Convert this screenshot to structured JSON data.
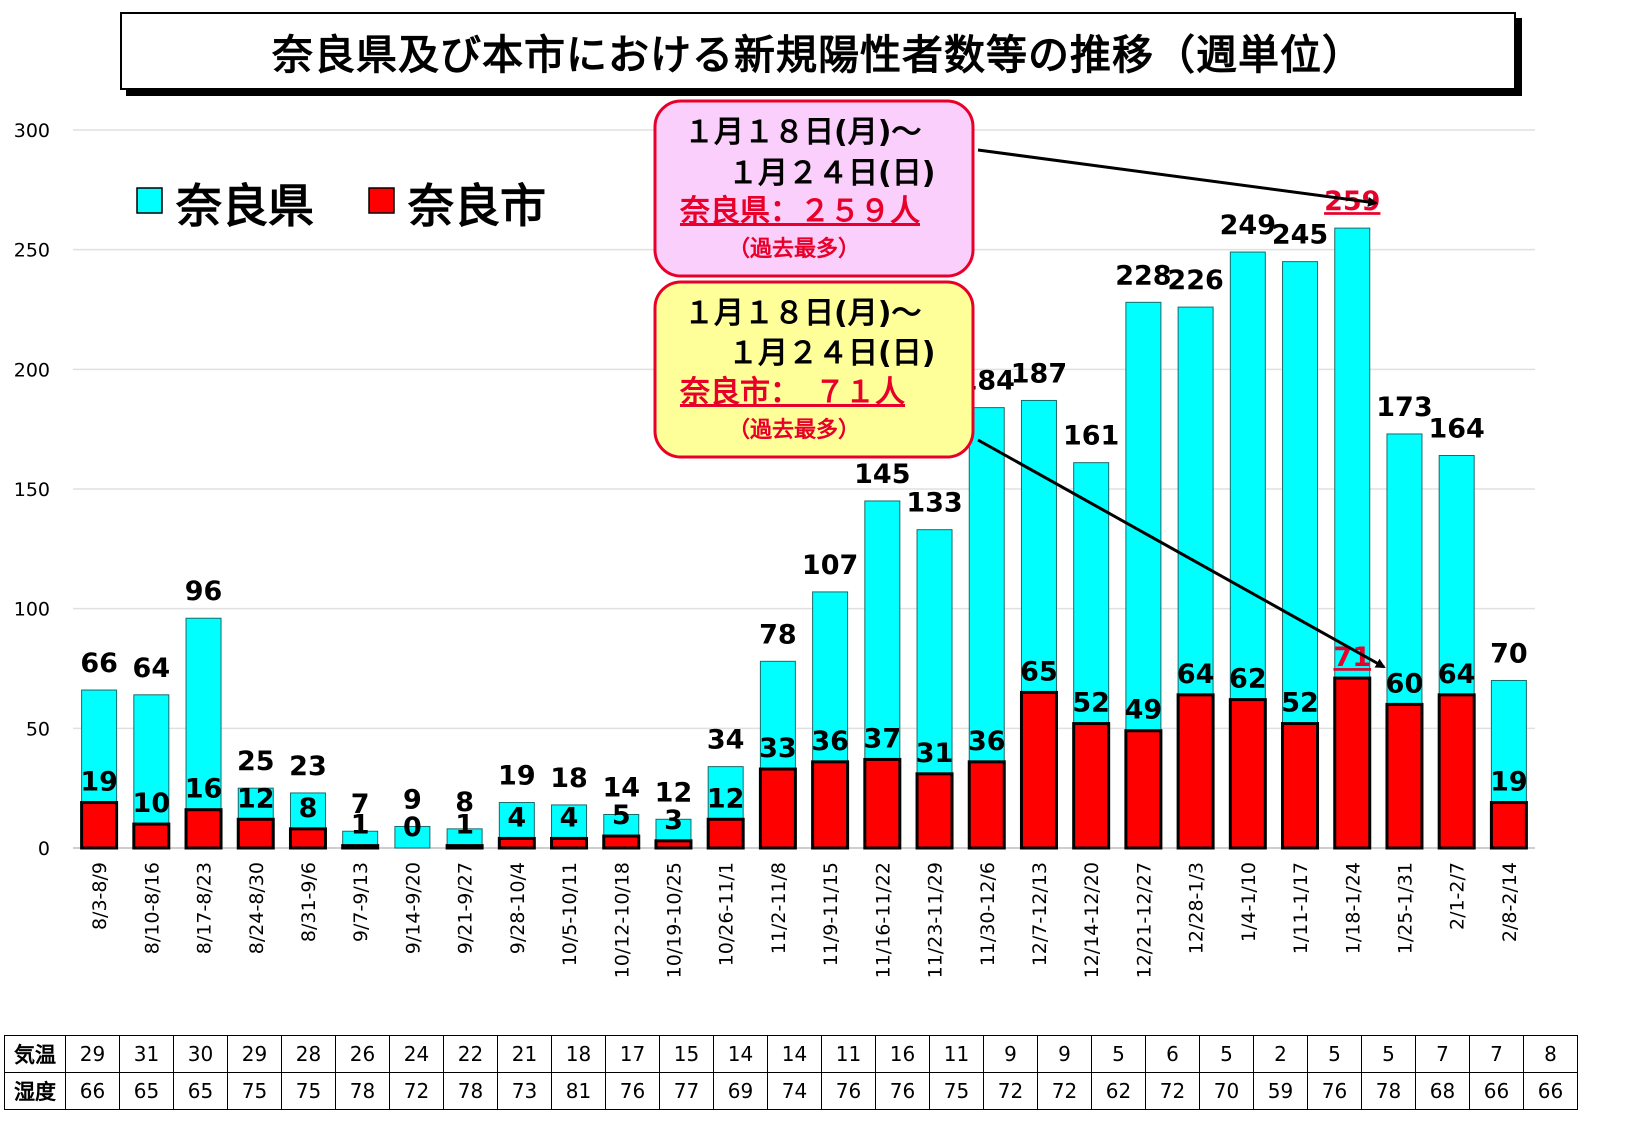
{
  "page_title": "奈良県及び本市における新規陽性者数等の推移（週単位）",
  "colors": {
    "prefecture": "#00FFFF",
    "city": "#FF0000",
    "accent": "#E8002A",
    "pink_box": "#FBCFFB",
    "yellow_box": "#FFFF99"
  },
  "chart_data": {
    "type": "bar",
    "categories": [
      "8/3-8/9",
      "8/10-8/16",
      "8/17-8/23",
      "8/24-8/30",
      "8/31-9/6",
      "9/7-9/13",
      "9/14-9/20",
      "9/21-9/27",
      "9/28-10/4",
      "10/5-10/11",
      "10/12-10/18",
      "10/19-10/25",
      "10/26-11/1",
      "11/2-11/8",
      "11/9-11/15",
      "11/16-11/22",
      "11/23-11/29",
      "11/30-12/6",
      "12/7-12/13",
      "12/14-12/20",
      "12/21-12/27",
      "12/28-1/3",
      "1/4-1/10",
      "1/11-1/17",
      "1/18-1/24",
      "1/25-1/31",
      "2/1-2/7",
      "2/8-2/14"
    ],
    "series": [
      {
        "name": "奈良県",
        "values": [
          66,
          64,
          96,
          25,
          23,
          7,
          9,
          8,
          19,
          18,
          14,
          12,
          34,
          78,
          107,
          145,
          133,
          184,
          187,
          161,
          228,
          226,
          249,
          245,
          259,
          173,
          164,
          70
        ]
      },
      {
        "name": "奈良市",
        "values": [
          19,
          10,
          16,
          12,
          8,
          1,
          0,
          1,
          4,
          4,
          5,
          3,
          12,
          33,
          36,
          37,
          31,
          36,
          65,
          52,
          49,
          64,
          62,
          52,
          71,
          60,
          64,
          19
        ]
      }
    ],
    "ylim": [
      0,
      300
    ],
    "yticks": [
      0,
      50,
      100,
      150,
      200,
      250,
      300
    ],
    "grid": true,
    "legend_position": "top-left",
    "highlight_index": 24
  },
  "callouts": {
    "prefecture": {
      "line1": "１月１８日(月)～",
      "line2": "１月２４日(日)",
      "line3": "奈良県：２５９人",
      "line4": "（過去最多）"
    },
    "city": {
      "line1": "１月１８日(月)～",
      "line2": "１月２４日(日)",
      "line3": "奈良市：　７１人",
      "line4": "（過去最多）"
    }
  },
  "weather": {
    "temp_label": "気温",
    "humidity_label": "湿度",
    "temperature": [
      29,
      31,
      30,
      29,
      28,
      26,
      24,
      22,
      21,
      18,
      17,
      15,
      14,
      14,
      11,
      16,
      11,
      9,
      9,
      5,
      6,
      5,
      2,
      5,
      5,
      7,
      7,
      8
    ],
    "humidity": [
      66,
      65,
      65,
      75,
      75,
      78,
      72,
      78,
      73,
      81,
      76,
      77,
      69,
      74,
      76,
      76,
      75,
      72,
      72,
      62,
      72,
      70,
      59,
      76,
      78,
      68,
      66,
      66
    ]
  }
}
